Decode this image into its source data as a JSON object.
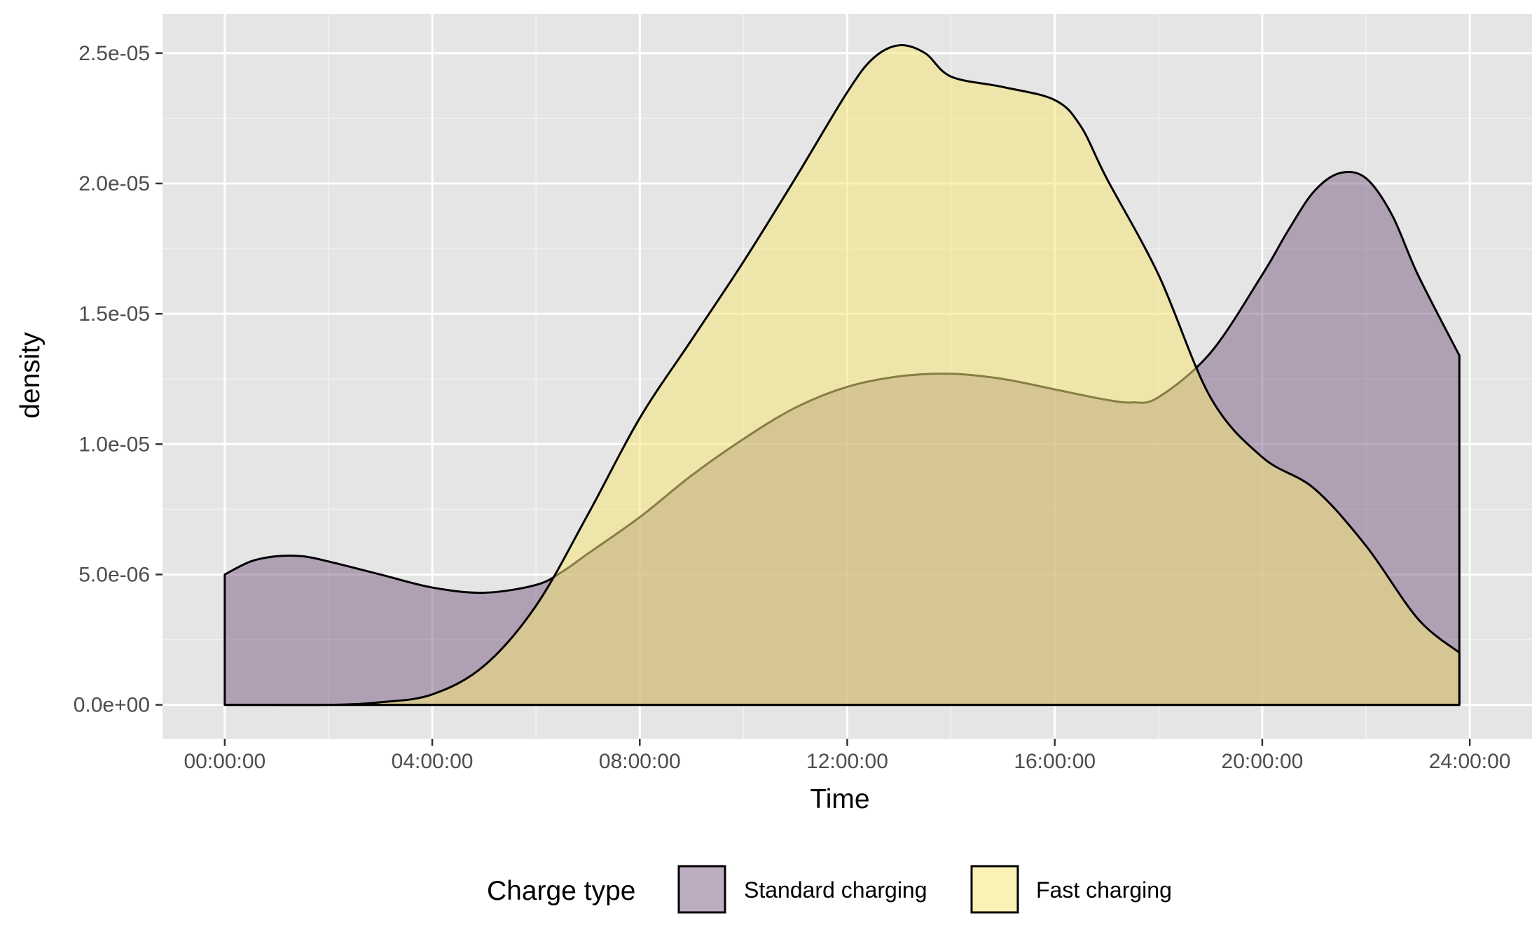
{
  "chart_data": {
    "type": "area",
    "subtype": "density",
    "title": "",
    "xlabel": "Time",
    "ylabel": "density",
    "x_unit": "hours",
    "xlim": [
      -1.2,
      25.2
    ],
    "ylim": [
      -1.3e-06,
      2.65e-05
    ],
    "x_ticks": [
      {
        "value": 0,
        "label": "00:00:00"
      },
      {
        "value": 4,
        "label": "04:00:00"
      },
      {
        "value": 8,
        "label": "08:00:00"
      },
      {
        "value": 12,
        "label": "12:00:00"
      },
      {
        "value": 16,
        "label": "16:00:00"
      },
      {
        "value": 20,
        "label": "20:00:00"
      },
      {
        "value": 24,
        "label": "24:00:00"
      }
    ],
    "y_ticks": [
      {
        "value": 0,
        "label": "0.0e+00"
      },
      {
        "value": 5e-06,
        "label": "5.0e-06"
      },
      {
        "value": 1e-05,
        "label": "1.0e-05"
      },
      {
        "value": 1.5e-05,
        "label": "1.5e-05"
      },
      {
        "value": 2e-05,
        "label": "2.0e-05"
      },
      {
        "value": 2.5e-05,
        "label": "2.5e-05"
      }
    ],
    "grid": true,
    "background": "#e5e5e5",
    "legend": {
      "title": "Charge type",
      "position": "bottom"
    },
    "series": [
      {
        "name": "Standard charging",
        "color": "#7b5c84",
        "alpha": 0.5,
        "x": [
          0,
          0.5,
          1,
          1.5,
          2,
          3,
          4,
          5,
          6,
          6.5,
          7,
          8,
          9,
          10,
          11,
          12,
          13,
          14,
          15,
          16,
          17,
          17.5,
          18,
          19,
          20,
          20.5,
          21,
          21.5,
          22,
          22.5,
          23,
          23.8
        ],
        "y": [
          5e-06,
          5.5e-06,
          5.7e-06,
          5.7e-06,
          5.5e-06,
          5e-06,
          4.5e-06,
          4.3e-06,
          4.6e-06,
          5.1e-06,
          5.8e-06,
          7.2e-06,
          8.8e-06,
          1.02e-05,
          1.14e-05,
          1.22e-05,
          1.26e-05,
          1.27e-05,
          1.25e-05,
          1.21e-05,
          1.17e-05,
          1.16e-05,
          1.18e-05,
          1.35e-05,
          1.65e-05,
          1.82e-05,
          1.97e-05,
          2.04e-05,
          2.02e-05,
          1.88e-05,
          1.65e-05,
          1.34e-05
        ]
      },
      {
        "name": "Fast charging",
        "color": "#f5e67a",
        "alpha": 0.55,
        "x": [
          0,
          2,
          3,
          4,
          5,
          6,
          7,
          8,
          9,
          10,
          11,
          12,
          12.5,
          13,
          13.5,
          14,
          15,
          16,
          16.5,
          17,
          18,
          19,
          20,
          21,
          22,
          23,
          23.8
        ],
        "y": [
          0,
          0,
          1e-07,
          4e-07,
          1.5e-06,
          3.8e-06,
          7.3e-06,
          1.1e-05,
          1.4e-05,
          1.7e-05,
          2.02e-05,
          2.35e-05,
          2.48e-05,
          2.53e-05,
          2.5e-05,
          2.41e-05,
          2.37e-05,
          2.32e-05,
          2.22e-05,
          2.02e-05,
          1.65e-05,
          1.18e-05,
          9.5e-06,
          8.3e-06,
          6.1e-06,
          3.3e-06,
          2e-06
        ]
      }
    ]
  }
}
